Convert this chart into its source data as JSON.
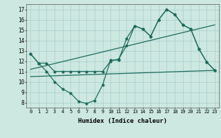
{
  "xlabel": "Humidex (Indice chaleur)",
  "background_color": "#cce8e0",
  "grid_color": "#aacccc",
  "line_color": "#1a6b5a",
  "ylim": [
    7.5,
    17.5
  ],
  "xlim": [
    -0.5,
    23.5
  ],
  "yticks": [
    8,
    9,
    10,
    11,
    12,
    13,
    14,
    15,
    16,
    17
  ],
  "xticks": [
    0,
    1,
    2,
    3,
    4,
    5,
    6,
    7,
    8,
    9,
    10,
    11,
    12,
    13,
    14,
    15,
    16,
    17,
    18,
    19,
    20,
    21,
    22,
    23
  ],
  "series1_y": [
    12.7,
    11.8,
    11.8,
    11.0,
    11.0,
    11.0,
    11.0,
    11.0,
    11.0,
    11.0,
    12.0,
    12.2,
    13.5,
    15.4,
    15.1,
    14.4,
    16.0,
    17.0,
    16.5,
    15.5,
    15.1,
    13.2,
    11.9,
    11.1
  ],
  "series2_y": [
    12.7,
    11.8,
    11.0,
    10.0,
    9.3,
    8.9,
    8.1,
    7.9,
    8.2,
    9.7,
    12.1,
    12.1,
    14.2,
    15.4,
    15.1,
    14.4,
    16.0,
    17.0,
    16.5,
    15.5,
    15.1,
    13.2,
    11.9,
    11.1
  ],
  "trend1_x": [
    0,
    23
  ],
  "trend1_y": [
    11.2,
    15.5
  ],
  "trend2_x": [
    0,
    23
  ],
  "trend2_y": [
    10.5,
    11.1
  ]
}
